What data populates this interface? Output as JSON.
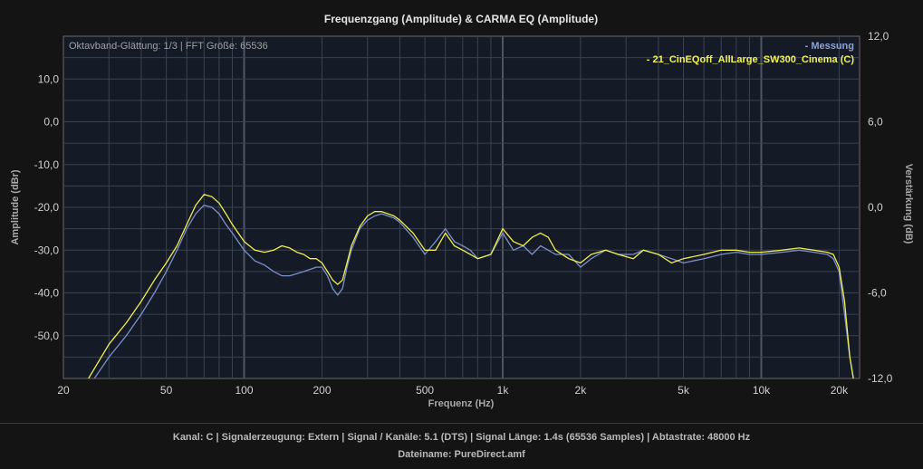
{
  "chart_data": {
    "type": "line",
    "title": "Frequenzgang (Amplitude) & CARMA EQ (Amplitude)",
    "subtitle": "Oktavband-Glättung: 1/3 | FFT Größe: 65536",
    "xlabel": "Frequenz (Hz)",
    "ylabel": "Amplitude (dBr)",
    "y2label": "Verstärkung (dB)",
    "xscale": "log",
    "xlim": [
      20,
      24000
    ],
    "ylim": [
      -60,
      20
    ],
    "y2lim": [
      -12,
      12
    ],
    "x_ticks": [
      "20",
      "50",
      "100",
      "200",
      "500",
      "1k",
      "2k",
      "5k",
      "10k",
      "20k"
    ],
    "y_ticks": [
      "10,0",
      "0,0",
      "-10,0",
      "-20,0",
      "-30,0",
      "-40,0",
      "-50,0"
    ],
    "y2_ticks": [
      "12,0",
      "6,0",
      "0,0",
      "-6,0",
      "-12,0"
    ],
    "grid": true,
    "legend_position": "top-right",
    "series": [
      {
        "name": "- Messung",
        "color": "#7b8fcb",
        "x": [
          25,
          30,
          35,
          40,
          45,
          50,
          55,
          60,
          65,
          70,
          75,
          80,
          85,
          90,
          100,
          110,
          120,
          130,
          140,
          150,
          160,
          170,
          180,
          190,
          200,
          210,
          220,
          230,
          240,
          250,
          260,
          280,
          300,
          320,
          340,
          360,
          380,
          400,
          450,
          500,
          550,
          600,
          650,
          700,
          750,
          800,
          900,
          1000,
          1100,
          1200,
          1300,
          1400,
          1500,
          1600,
          1800,
          2000,
          2200,
          2500,
          2800,
          3200,
          3500,
          4000,
          4500,
          5000,
          6000,
          7000,
          8000,
          9000,
          10000,
          12000,
          14000,
          16000,
          18000,
          19000,
          20000,
          21000,
          22000,
          23000
        ],
        "values": [
          -62,
          -55,
          -50,
          -45,
          -40,
          -35,
          -30,
          -25,
          -21.5,
          -19.5,
          -20,
          -21.5,
          -24,
          -26,
          -30,
          -32.5,
          -33.5,
          -35,
          -36,
          -36,
          -35.5,
          -35,
          -34.5,
          -34,
          -34,
          -36,
          -39,
          -40.5,
          -39,
          -34,
          -30,
          -25,
          -23,
          -22,
          -21.5,
          -22,
          -22.5,
          -23.5,
          -27,
          -31,
          -28,
          -25,
          -28,
          -29,
          -30,
          -32,
          -31,
          -26,
          -30,
          -29,
          -31,
          -29,
          -30,
          -31,
          -31,
          -34,
          -32,
          -30,
          -31,
          -31,
          -30,
          -31,
          -32,
          -33,
          -32,
          -31,
          -30.5,
          -31,
          -31,
          -30.5,
          -30,
          -30.5,
          -31,
          -32,
          -35,
          -45,
          -55,
          -62
        ]
      },
      {
        "name": "- 21_CinEQoff_AllLarge_SW300_Cinema (C)",
        "color": "#f0ee4a",
        "x": [
          25,
          30,
          35,
          40,
          45,
          50,
          55,
          60,
          65,
          70,
          75,
          80,
          85,
          90,
          100,
          110,
          120,
          130,
          140,
          150,
          160,
          170,
          180,
          190,
          200,
          210,
          220,
          230,
          240,
          250,
          260,
          280,
          300,
          320,
          340,
          360,
          380,
          400,
          450,
          500,
          550,
          600,
          650,
          700,
          750,
          800,
          900,
          1000,
          1100,
          1200,
          1300,
          1400,
          1500,
          1600,
          1800,
          2000,
          2200,
          2500,
          2800,
          3200,
          3500,
          4000,
          4500,
          5000,
          6000,
          7000,
          8000,
          9000,
          10000,
          12000,
          14000,
          16000,
          18000,
          19000,
          20000,
          21000,
          22000,
          23000
        ],
        "values": [
          -60,
          -52,
          -47,
          -42,
          -37,
          -33,
          -29,
          -24,
          -19.5,
          -17,
          -17.5,
          -19,
          -21.5,
          -24,
          -28,
          -30,
          -30.5,
          -30,
          -29,
          -29.5,
          -30.5,
          -31,
          -32,
          -32,
          -33,
          -35,
          -37,
          -38,
          -37,
          -33,
          -29,
          -24.5,
          -22,
          -21,
          -21,
          -21.5,
          -22,
          -23,
          -26,
          -30,
          -30,
          -26,
          -29,
          -30,
          -31,
          -32,
          -31,
          -25,
          -28,
          -29,
          -27,
          -26,
          -27,
          -30,
          -32,
          -33,
          -31,
          -30,
          -31,
          -32,
          -30,
          -31,
          -33,
          -32,
          -31,
          -30,
          -30,
          -30.5,
          -30.5,
          -30,
          -29.5,
          -30,
          -30.5,
          -31,
          -34,
          -42,
          -55,
          -62
        ]
      }
    ]
  },
  "footer": {
    "info": "Kanal: C  |  Signalerzeugung: Extern   |  Signal / Kanäle: 5.1 (DTS)  |  Signal Länge: 1.4s (65536 Samples)  |  Abtastrate: 48000 Hz",
    "file": "Dateiname: PureDirect.amf"
  },
  "colors": {
    "background": "#141414",
    "plot_background": "#151b26",
    "grid": "#3a4250"
  }
}
